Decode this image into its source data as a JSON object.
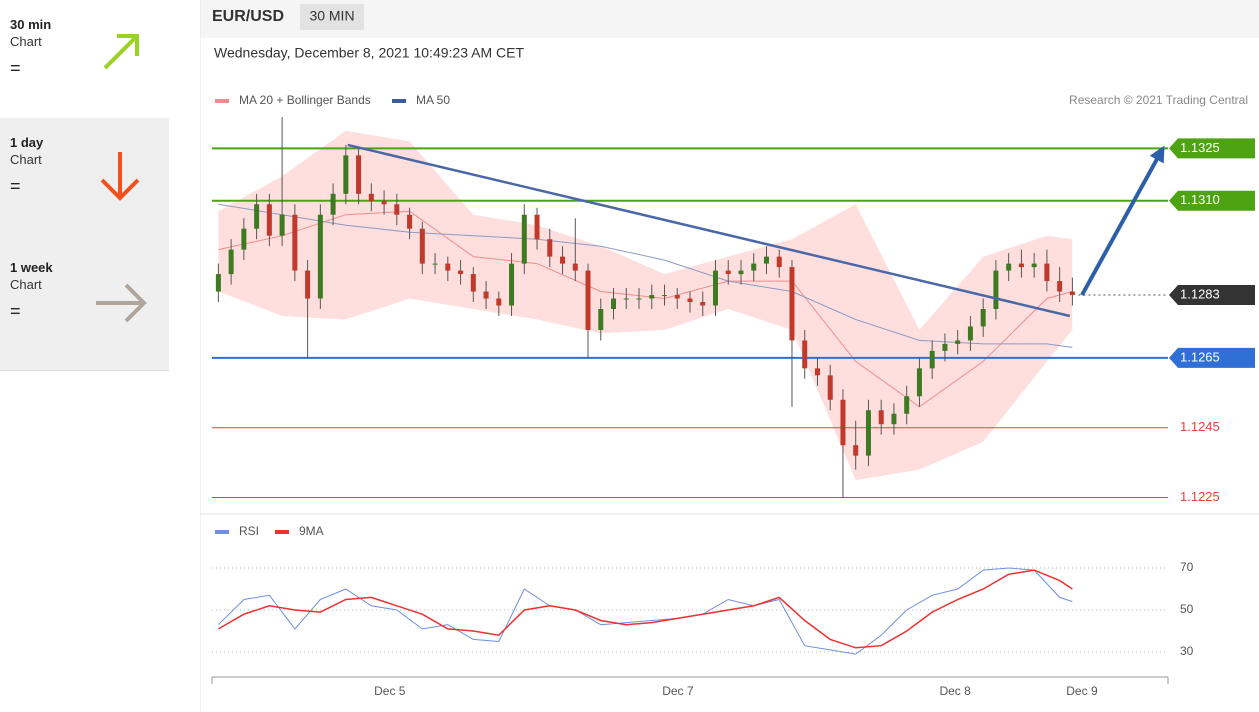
{
  "sidebar": [
    {
      "title": "30 min",
      "subtitle": "Chart",
      "status": "="
    },
    {
      "title": "1 day",
      "subtitle": "Chart",
      "status": "="
    },
    {
      "title": "1 week",
      "subtitle": "Chart",
      "status": "="
    }
  ],
  "header": {
    "symbol": "EUR/USD",
    "interval": "30 MIN",
    "timestamp": "Wednesday, December 8, 2021 10:49:23 AM CET"
  },
  "chart_data": [
    {
      "type": "candlestick",
      "credit": "Research © 2021 Trading Central",
      "up_color": "#3d7a22",
      "down_color": "#c0392b",
      "xlim": [
        0,
        150
      ],
      "ylim": [
        1.1222,
        1.1336
      ],
      "x": [
        1,
        3,
        5,
        7,
        9,
        11,
        13,
        15,
        17,
        19,
        21,
        23,
        25,
        27,
        29,
        31,
        33,
        35,
        37,
        39,
        41,
        43,
        45,
        47,
        49,
        51,
        53,
        55,
        57,
        59,
        61,
        63,
        65,
        67,
        69,
        71,
        73,
        75,
        77,
        79,
        81,
        83,
        85,
        87,
        89,
        91,
        93,
        95,
        97,
        99,
        101,
        103,
        105,
        107,
        109,
        111,
        113,
        115,
        117,
        119,
        121,
        123,
        125,
        127,
        129,
        131,
        133,
        135
      ],
      "open": [
        1.1284,
        1.1289,
        1.1296,
        1.1302,
        1.1309,
        1.13,
        1.1306,
        1.129,
        1.1282,
        1.1306,
        1.1312,
        1.1323,
        1.1312,
        1.131,
        1.1309,
        1.1306,
        1.1302,
        1.1292,
        1.1292,
        1.129,
        1.1289,
        1.1284,
        1.1282,
        1.128,
        1.1292,
        1.1306,
        1.1299,
        1.1294,
        1.1292,
        1.129,
        1.1273,
        1.1279,
        1.1282,
        1.1282,
        1.1282,
        1.1283,
        1.1283,
        1.1282,
        1.1281,
        1.128,
        1.129,
        1.1289,
        1.129,
        1.1292,
        1.1294,
        1.1291,
        1.127,
        1.1262,
        1.126,
        1.1253,
        1.124,
        1.1237,
        1.125,
        1.1246,
        1.1249,
        1.1254,
        1.1262,
        1.1267,
        1.1269,
        1.127,
        1.1274,
        1.1279,
        1.129,
        1.1292,
        1.1291,
        1.1292,
        1.1287,
        1.1284
      ],
      "high": [
        1.1292,
        1.1299,
        1.1305,
        1.1312,
        1.1312,
        1.1334,
        1.1309,
        1.1293,
        1.1309,
        1.1315,
        1.1326,
        1.1325,
        1.1315,
        1.1313,
        1.1312,
        1.1308,
        1.1304,
        1.1295,
        1.1294,
        1.1293,
        1.1291,
        1.1287,
        1.1284,
        1.1295,
        1.1309,
        1.1308,
        1.1302,
        1.1297,
        1.1305,
        1.1292,
        1.1282,
        1.1285,
        1.1285,
        1.1285,
        1.1286,
        1.1286,
        1.1285,
        1.1284,
        1.1284,
        1.1293,
        1.1293,
        1.1293,
        1.1295,
        1.1297,
        1.1296,
        1.1293,
        1.1273,
        1.1265,
        1.1263,
        1.1256,
        1.1247,
        1.1253,
        1.1253,
        1.1252,
        1.1257,
        1.1265,
        1.127,
        1.1272,
        1.1273,
        1.1277,
        1.1282,
        1.1293,
        1.1295,
        1.1296,
        1.1295,
        1.1296,
        1.1291,
        1.1288
      ],
      "low": [
        1.1281,
        1.1286,
        1.1293,
        1.1299,
        1.1297,
        1.1297,
        1.1287,
        1.1265,
        1.1279,
        1.1303,
        1.1309,
        1.1309,
        1.1307,
        1.1306,
        1.1303,
        1.1299,
        1.1289,
        1.1289,
        1.1287,
        1.1286,
        1.1281,
        1.1279,
        1.1277,
        1.1277,
        1.1289,
        1.1296,
        1.1291,
        1.1289,
        1.1287,
        1.1265,
        1.127,
        1.1276,
        1.1279,
        1.1279,
        1.1279,
        1.128,
        1.1279,
        1.1278,
        1.1277,
        1.1277,
        1.1286,
        1.1286,
        1.1287,
        1.1289,
        1.1288,
        1.1251,
        1.1259,
        1.1257,
        1.125,
        1.1225,
        1.1233,
        1.1234,
        1.1243,
        1.1243,
        1.1246,
        1.1251,
        1.1259,
        1.1264,
        1.1266,
        1.1267,
        1.1271,
        1.1276,
        1.1287,
        1.1288,
        1.1288,
        1.1284,
        1.1281,
        1.128
      ],
      "close": [
        1.1289,
        1.1296,
        1.1302,
        1.1309,
        1.13,
        1.1306,
        1.129,
        1.1282,
        1.1306,
        1.1312,
        1.1323,
        1.1312,
        1.131,
        1.1309,
        1.1306,
        1.1302,
        1.1292,
        1.1292,
        1.129,
        1.1289,
        1.1284,
        1.1282,
        1.128,
        1.1292,
        1.1306,
        1.1299,
        1.1294,
        1.1292,
        1.129,
        1.1273,
        1.1279,
        1.1282,
        1.1282,
        1.1282,
        1.1283,
        1.1283,
        1.1282,
        1.1281,
        1.128,
        1.129,
        1.1289,
        1.129,
        1.1292,
        1.1294,
        1.1291,
        1.127,
        1.1262,
        1.126,
        1.1253,
        1.124,
        1.1237,
        1.125,
        1.1246,
        1.1249,
        1.1254,
        1.1262,
        1.1267,
        1.1269,
        1.127,
        1.1274,
        1.1279,
        1.129,
        1.1292,
        1.1291,
        1.1292,
        1.1287,
        1.1284,
        1.1283
      ],
      "overlays": [
        {
          "name": "MA 20 + Bollinger Bands",
          "color": "#f28c8c",
          "band_color": "#ffd6d6",
          "x": [
            1,
            11,
            21,
            31,
            41,
            51,
            61,
            71,
            81,
            91,
            101,
            111,
            121,
            131,
            135
          ],
          "values": [
            1.1296,
            1.13,
            1.1306,
            1.1307,
            1.1294,
            1.1292,
            1.1284,
            1.1282,
            1.1287,
            1.1287,
            1.1264,
            1.1251,
            1.1264,
            1.1282,
            1.1284
          ],
          "upper": [
            1.1307,
            1.1317,
            1.133,
            1.1327,
            1.1306,
            1.1303,
            1.1297,
            1.1289,
            1.1294,
            1.1299,
            1.1309,
            1.1273,
            1.1294,
            1.13,
            1.1299
          ],
          "lower": [
            1.1284,
            1.1277,
            1.1276,
            1.1282,
            1.1279,
            1.1276,
            1.1272,
            1.1273,
            1.1279,
            1.1273,
            1.123,
            1.1233,
            1.1241,
            1.1264,
            1.1273
          ]
        },
        {
          "name": "MA 50",
          "color": "#3b5b9a",
          "line_color": "#8d9ac4",
          "x": [
            1,
            11,
            21,
            31,
            41,
            51,
            61,
            71,
            81,
            91,
            101,
            111,
            121,
            131,
            135
          ],
          "values": [
            1.1309,
            1.1306,
            1.1303,
            1.1301,
            1.13,
            1.1299,
            1.1297,
            1.1293,
            1.1287,
            1.1284,
            1.1276,
            1.127,
            1.1269,
            1.1269,
            1.1268
          ]
        }
      ],
      "levels": [
        {
          "value": 1.1325,
          "color": "#4ea312",
          "boxed": true
        },
        {
          "value": 1.131,
          "label": "1.1310",
          "color": "#4ea312",
          "boxed": true
        },
        {
          "value": 1.1283,
          "color": "#333333",
          "boxed": true,
          "dotted": true
        },
        {
          "value": 1.1265,
          "color": "#2f6fd6",
          "boxed": true
        },
        {
          "value": 1.1245,
          "color": "#f03c3c",
          "boxed": false
        },
        {
          "value": 1.1225,
          "color": "#f03c3c",
          "boxed": false
        }
      ],
      "trendlines": [
        {
          "x": [
            21.3,
            134.6
          ],
          "values": [
            1.1326,
            1.1277
          ],
          "color": "#4a67a8",
          "arrow": false
        },
        {
          "x": [
            136.5,
            149.2
          ],
          "values": [
            1.1283,
            1.1325
          ],
          "color": "#2d5fa8",
          "arrow": true
        }
      ]
    },
    {
      "type": "line",
      "xlim": [
        0,
        150
      ],
      "ylim": [
        20,
        80
      ],
      "yticks": [
        30,
        50,
        70
      ],
      "xticks": [
        {
          "value": 27.9,
          "label": "Dec 5"
        },
        {
          "value": 73.1,
          "label": "Dec 7"
        },
        {
          "value": 116.6,
          "label": "Dec 8"
        },
        {
          "value": 136.5,
          "label": "Dec 9"
        }
      ],
      "x": [
        1,
        5,
        9,
        13,
        17,
        21,
        25,
        29,
        33,
        37,
        41,
        45,
        49,
        53,
        57,
        61,
        65,
        69,
        73,
        77,
        81,
        85,
        89,
        93,
        97,
        101,
        105,
        109,
        113,
        117,
        121,
        125,
        129,
        133,
        135
      ],
      "series": [
        {
          "name": "RSI",
          "color": "#6f8fe0",
          "values": [
            43,
            55,
            57,
            41,
            55,
            60,
            52,
            50,
            41,
            43,
            36,
            35,
            60,
            52,
            50,
            43,
            44,
            45,
            46,
            48,
            55,
            52,
            55,
            33,
            31,
            29,
            38,
            50,
            57,
            60,
            69,
            70,
            69,
            56,
            54
          ]
        },
        {
          "name": "9MA",
          "color": "#f03030",
          "values": [
            41,
            48,
            52,
            50,
            49,
            55,
            56,
            52,
            48,
            41,
            40,
            38,
            50,
            52,
            50,
            45,
            43,
            44,
            46,
            48,
            50,
            52,
            56,
            45,
            36,
            32,
            33,
            40,
            49,
            55,
            60,
            67,
            69,
            64,
            60
          ]
        }
      ]
    }
  ]
}
